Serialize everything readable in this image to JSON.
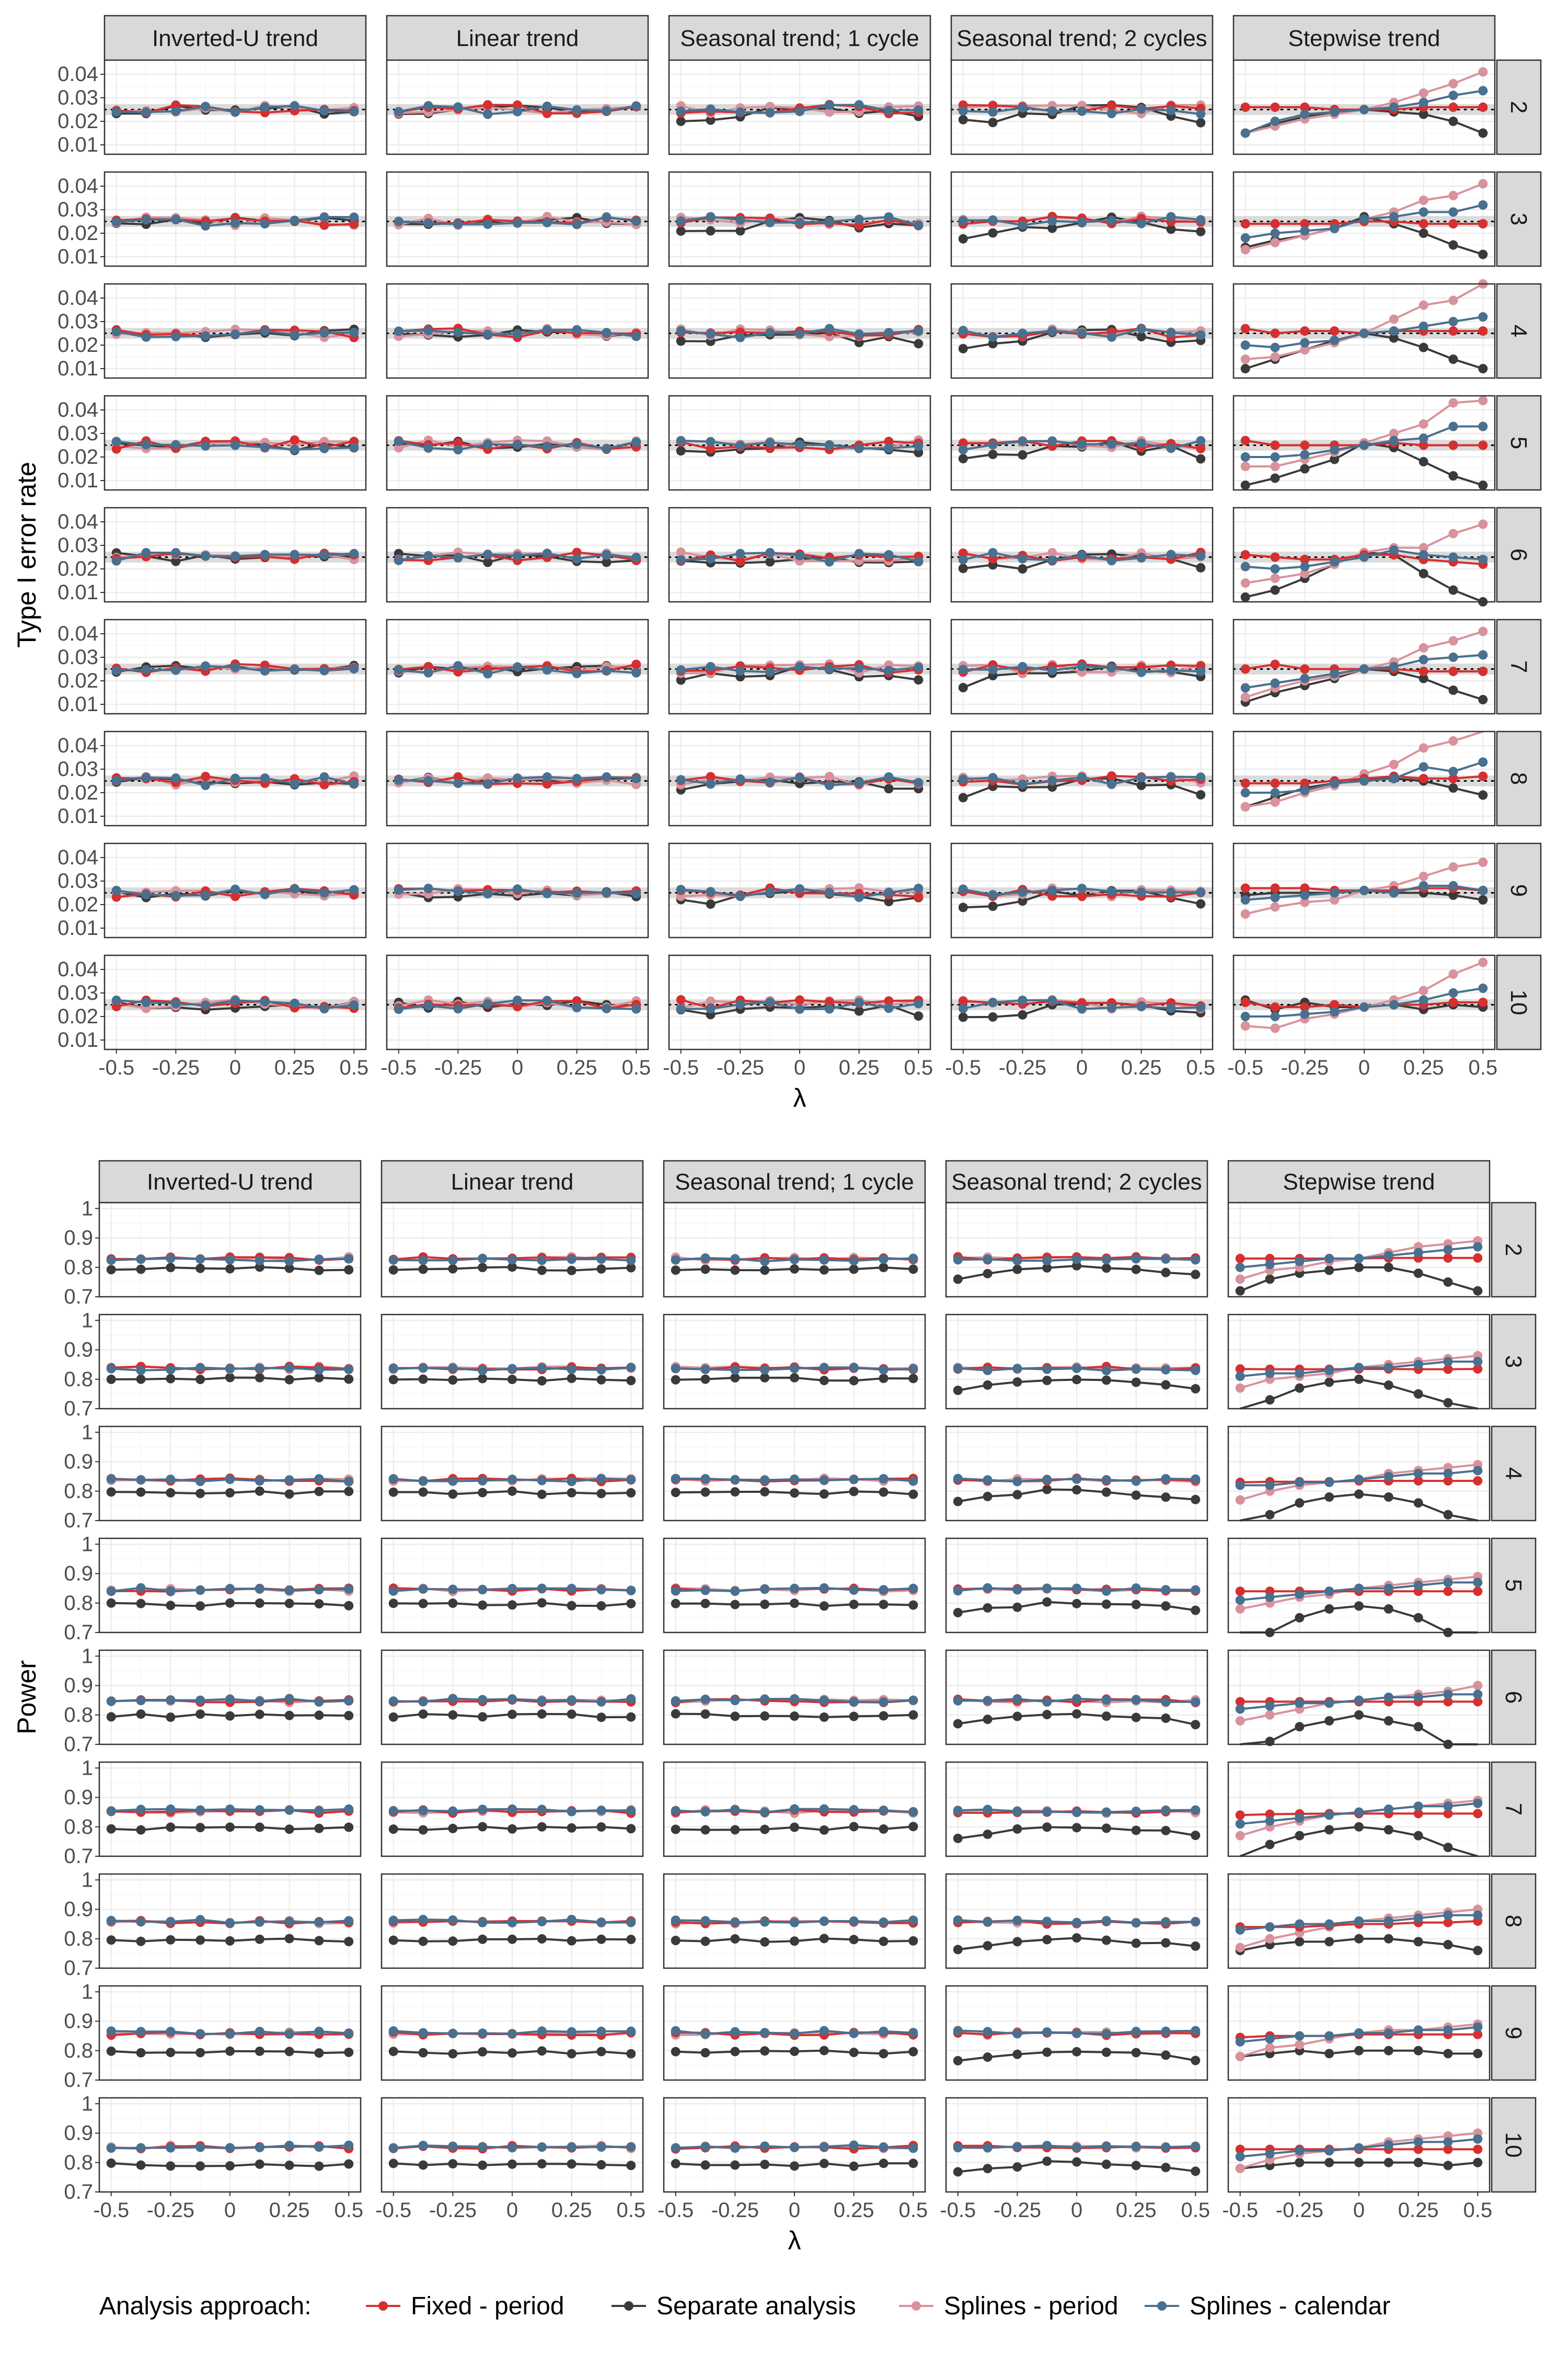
{
  "legend": {
    "title": "Analysis approach:",
    "items": [
      {
        "key": "fixed",
        "label": "Fixed - period",
        "color": "#d62f30"
      },
      {
        "key": "sep",
        "label": "Separate analysis",
        "color": "#3a3a3a"
      },
      {
        "key": "splp",
        "label": "Splines - period",
        "color": "#d8929c"
      },
      {
        "key": "splc",
        "label": "Splines - calendar",
        "color": "#49708f"
      }
    ]
  },
  "chart_data": [
    {
      "type": "line",
      "ylabel": "Type I error rate",
      "xlabel": "λ",
      "x": [
        -0.5,
        -0.375,
        -0.25,
        -0.125,
        0,
        0.125,
        0.25,
        0.375,
        0.5
      ],
      "x_ticks": [
        "-0.5",
        "-0.25",
        "0",
        "0.25",
        "0.5"
      ],
      "y_ticks": [
        "0.01",
        "0.02",
        "0.03",
        "0.04"
      ],
      "ylim": [
        0.006,
        0.046
      ],
      "reference_line": 0.025,
      "reference_band": [
        0.0227,
        0.0273
      ],
      "facet_columns": [
        "Inverted-U trend",
        "Linear trend",
        "Seasonal trend; 1 cycle",
        "Seasonal trend; 2 cycles",
        "Stepwise trend"
      ],
      "facet_rows": [
        "2",
        "3",
        "4",
        "5",
        "6",
        "7",
        "8",
        "9",
        "10"
      ],
      "generic_series": {
        "fixed": 0.0252,
        "sep": 0.0248,
        "splp": 0.0252,
        "splc": 0.025,
        "sep_seasonal2": [
          0.019,
          0.021,
          0.022,
          0.024,
          0.025,
          0.025,
          0.024,
          0.023,
          0.021
        ],
        "sep_seasonal1": [
          0.022,
          0.022,
          0.023,
          0.024,
          0.025,
          0.024,
          0.023,
          0.023,
          0.022
        ]
      },
      "stepwise_series": [
        {
          "row": "2",
          "fixed": [
            0.026,
            0.026,
            0.026,
            0.025,
            0.025,
            0.025,
            0.026,
            0.026,
            0.026
          ],
          "sep": [
            0.015,
            0.019,
            0.022,
            0.024,
            0.025,
            0.024,
            0.023,
            0.02,
            0.015
          ],
          "splp": [
            0.015,
            0.018,
            0.021,
            0.023,
            0.025,
            0.028,
            0.032,
            0.036,
            0.041
          ],
          "splc": [
            0.015,
            0.02,
            0.023,
            0.024,
            0.025,
            0.026,
            0.028,
            0.031,
            0.033
          ]
        },
        {
          "row": "3",
          "fixed": [
            0.024,
            0.024,
            0.024,
            0.024,
            0.025,
            0.025,
            0.024,
            0.024,
            0.024
          ],
          "sep": [
            0.014,
            0.017,
            0.019,
            0.022,
            0.027,
            0.024,
            0.02,
            0.015,
            0.011
          ],
          "splp": [
            0.013,
            0.016,
            0.019,
            0.022,
            0.026,
            0.029,
            0.034,
            0.036,
            0.041
          ],
          "splc": [
            0.018,
            0.02,
            0.021,
            0.022,
            0.026,
            0.027,
            0.029,
            0.029,
            0.032
          ]
        },
        {
          "row": "4",
          "fixed": [
            0.027,
            0.025,
            0.026,
            0.026,
            0.025,
            0.026,
            0.026,
            0.026,
            0.026
          ],
          "sep": [
            0.01,
            0.014,
            0.018,
            0.022,
            0.025,
            0.023,
            0.019,
            0.014,
            0.01
          ],
          "splp": [
            0.014,
            0.015,
            0.018,
            0.021,
            0.025,
            0.031,
            0.037,
            0.039,
            0.046
          ],
          "splc": [
            0.02,
            0.019,
            0.021,
            0.022,
            0.025,
            0.026,
            0.028,
            0.03,
            0.032
          ]
        },
        {
          "row": "5",
          "fixed": [
            0.027,
            0.025,
            0.025,
            0.025,
            0.025,
            0.026,
            0.025,
            0.025,
            0.025
          ],
          "sep": [
            0.008,
            0.011,
            0.015,
            0.019,
            0.026,
            0.024,
            0.018,
            0.012,
            0.008
          ],
          "splp": [
            0.016,
            0.016,
            0.019,
            0.022,
            0.026,
            0.03,
            0.034,
            0.043,
            0.044
          ],
          "splc": [
            0.02,
            0.02,
            0.021,
            0.023,
            0.025,
            0.027,
            0.028,
            0.033,
            0.033
          ]
        },
        {
          "row": "6",
          "fixed": [
            0.026,
            0.025,
            0.024,
            0.024,
            0.026,
            0.026,
            0.024,
            0.023,
            0.022
          ],
          "sep": [
            0.008,
            0.011,
            0.016,
            0.022,
            0.027,
            0.026,
            0.018,
            0.011,
            0.006
          ],
          "splp": [
            0.014,
            0.016,
            0.018,
            0.022,
            0.027,
            0.029,
            0.029,
            0.035,
            0.039
          ],
          "splc": [
            0.021,
            0.02,
            0.021,
            0.023,
            0.025,
            0.028,
            0.026,
            0.025,
            0.024
          ]
        },
        {
          "row": "7",
          "fixed": [
            0.025,
            0.027,
            0.025,
            0.025,
            0.025,
            0.025,
            0.024,
            0.024,
            0.024
          ],
          "sep": [
            0.011,
            0.015,
            0.018,
            0.021,
            0.025,
            0.024,
            0.021,
            0.016,
            0.012
          ],
          "splp": [
            0.013,
            0.017,
            0.02,
            0.022,
            0.025,
            0.028,
            0.034,
            0.037,
            0.041
          ],
          "splc": [
            0.017,
            0.019,
            0.021,
            0.023,
            0.025,
            0.026,
            0.029,
            0.03,
            0.031
          ]
        },
        {
          "row": "8",
          "fixed": [
            0.024,
            0.024,
            0.024,
            0.025,
            0.026,
            0.027,
            0.026,
            0.026,
            0.027
          ],
          "sep": [
            0.014,
            0.018,
            0.022,
            0.024,
            0.026,
            0.026,
            0.025,
            0.022,
            0.019
          ],
          "splp": [
            0.014,
            0.016,
            0.02,
            0.023,
            0.028,
            0.032,
            0.039,
            0.042,
            0.049
          ],
          "splc": [
            0.02,
            0.02,
            0.021,
            0.024,
            0.025,
            0.026,
            0.031,
            0.029,
            0.033
          ]
        },
        {
          "row": "9",
          "fixed": [
            0.027,
            0.027,
            0.027,
            0.026,
            0.026,
            0.026,
            0.027,
            0.027,
            0.026
          ],
          "sep": [
            0.024,
            0.025,
            0.025,
            0.025,
            0.026,
            0.025,
            0.025,
            0.024,
            0.022
          ],
          "splp": [
            0.016,
            0.019,
            0.021,
            0.022,
            0.026,
            0.028,
            0.032,
            0.036,
            0.038
          ],
          "splc": [
            0.022,
            0.023,
            0.024,
            0.025,
            0.026,
            0.025,
            0.028,
            0.028,
            0.026
          ]
        },
        {
          "row": "10",
          "fixed": [
            0.026,
            0.024,
            0.024,
            0.025,
            0.024,
            0.025,
            0.025,
            0.026,
            0.026
          ],
          "sep": [
            0.027,
            0.023,
            0.026,
            0.024,
            0.024,
            0.025,
            0.023,
            0.025,
            0.024
          ],
          "splp": [
            0.016,
            0.015,
            0.019,
            0.021,
            0.024,
            0.027,
            0.031,
            0.038,
            0.043
          ],
          "splc": [
            0.02,
            0.02,
            0.021,
            0.022,
            0.024,
            0.025,
            0.027,
            0.03,
            0.032
          ]
        }
      ]
    },
    {
      "type": "line",
      "ylabel": "Power",
      "xlabel": "λ",
      "x": [
        -0.5,
        -0.375,
        -0.25,
        -0.125,
        0,
        0.125,
        0.25,
        0.375,
        0.5
      ],
      "x_ticks": [
        "-0.5",
        "-0.25",
        "0",
        "0.25",
        "0.5"
      ],
      "y_ticks": [
        "0.7",
        "0.8",
        "0.9",
        "1"
      ],
      "ylim": [
        0.7,
        1.02
      ],
      "facet_columns": [
        "Inverted-U trend",
        "Linear trend",
        "Seasonal trend; 1 cycle",
        "Seasonal trend; 2 cycles",
        "Stepwise trend"
      ],
      "facet_rows": [
        "2",
        "3",
        "4",
        "5",
        "6",
        "7",
        "8",
        "9",
        "10"
      ],
      "generic_series": {
        "fixed_by_row": [
          0.83,
          0.838,
          0.838,
          0.845,
          0.848,
          0.852,
          0.856,
          0.858,
          0.852
        ],
        "splc_by_row": [
          0.826,
          0.835,
          0.838,
          0.846,
          0.85,
          0.855,
          0.86,
          0.862,
          0.854
        ],
        "sep_by_row": [
          0.795,
          0.8,
          0.795,
          0.795,
          0.798,
          0.795,
          0.795,
          0.795,
          0.792
        ],
        "sep_seasonal2": [
          0.765,
          0.78,
          0.79,
          0.8,
          0.8,
          0.8,
          0.79,
          0.785,
          0.77
        ]
      },
      "stepwise_series": [
        {
          "row": "2",
          "fixed": [
            0.83,
            0.83,
            0.83,
            0.83,
            0.83,
            0.832,
            0.832,
            0.832,
            0.832
          ],
          "sep": [
            0.72,
            0.76,
            0.78,
            0.79,
            0.8,
            0.8,
            0.78,
            0.75,
            0.72
          ],
          "splp": [
            0.76,
            0.79,
            0.8,
            0.82,
            0.83,
            0.85,
            0.87,
            0.88,
            0.89
          ],
          "splc": [
            0.8,
            0.81,
            0.82,
            0.83,
            0.83,
            0.84,
            0.85,
            0.86,
            0.87
          ]
        },
        {
          "row": "3",
          "fixed": [
            0.835,
            0.834,
            0.834,
            0.834,
            0.835,
            0.835,
            0.834,
            0.834,
            0.835
          ],
          "sep": [
            0.69,
            0.73,
            0.77,
            0.79,
            0.8,
            0.78,
            0.75,
            0.72,
            0.69
          ],
          "splp": [
            0.77,
            0.8,
            0.81,
            0.82,
            0.84,
            0.85,
            0.86,
            0.87,
            0.88
          ],
          "splc": [
            0.81,
            0.82,
            0.82,
            0.83,
            0.84,
            0.84,
            0.85,
            0.86,
            0.86
          ]
        },
        {
          "row": "4",
          "fixed": [
            0.83,
            0.832,
            0.832,
            0.832,
            0.835,
            0.835,
            0.835,
            0.835,
            0.835
          ],
          "sep": [
            0.64,
            0.72,
            0.76,
            0.78,
            0.79,
            0.78,
            0.76,
            0.72,
            0.66
          ],
          "splp": [
            0.77,
            0.8,
            0.82,
            0.83,
            0.84,
            0.86,
            0.87,
            0.88,
            0.89
          ],
          "splc": [
            0.82,
            0.82,
            0.83,
            0.83,
            0.84,
            0.85,
            0.86,
            0.86,
            0.87
          ]
        },
        {
          "row": "5",
          "fixed": [
            0.84,
            0.84,
            0.84,
            0.84,
            0.84,
            0.84,
            0.84,
            0.84,
            0.84
          ],
          "sep": [
            0.64,
            0.7,
            0.75,
            0.78,
            0.79,
            0.78,
            0.75,
            0.7,
            0.64
          ],
          "splp": [
            0.78,
            0.8,
            0.82,
            0.83,
            0.85,
            0.86,
            0.87,
            0.88,
            0.89
          ],
          "splc": [
            0.81,
            0.82,
            0.83,
            0.84,
            0.85,
            0.85,
            0.86,
            0.87,
            0.87
          ]
        },
        {
          "row": "6",
          "fixed": [
            0.845,
            0.845,
            0.845,
            0.845,
            0.845,
            0.845,
            0.845,
            0.845,
            0.845
          ],
          "sep": [
            0.64,
            0.71,
            0.76,
            0.78,
            0.8,
            0.78,
            0.76,
            0.7,
            0.64
          ],
          "splp": [
            0.78,
            0.8,
            0.82,
            0.84,
            0.85,
            0.86,
            0.87,
            0.88,
            0.9
          ],
          "splc": [
            0.82,
            0.83,
            0.84,
            0.84,
            0.85,
            0.86,
            0.86,
            0.87,
            0.87
          ]
        },
        {
          "row": "7",
          "fixed": [
            0.84,
            0.843,
            0.844,
            0.845,
            0.845,
            0.845,
            0.845,
            0.845,
            0.845
          ],
          "sep": [
            0.69,
            0.74,
            0.77,
            0.79,
            0.8,
            0.79,
            0.77,
            0.73,
            0.69
          ],
          "splp": [
            0.77,
            0.8,
            0.82,
            0.84,
            0.85,
            0.86,
            0.87,
            0.88,
            0.89
          ],
          "splc": [
            0.81,
            0.82,
            0.83,
            0.84,
            0.85,
            0.86,
            0.87,
            0.87,
            0.88
          ]
        },
        {
          "row": "8",
          "fixed": [
            0.84,
            0.84,
            0.84,
            0.845,
            0.85,
            0.85,
            0.855,
            0.855,
            0.86
          ],
          "sep": [
            0.76,
            0.78,
            0.79,
            0.79,
            0.8,
            0.8,
            0.79,
            0.78,
            0.76
          ],
          "splp": [
            0.77,
            0.8,
            0.82,
            0.84,
            0.86,
            0.87,
            0.88,
            0.89,
            0.9
          ],
          "splc": [
            0.83,
            0.84,
            0.85,
            0.85,
            0.86,
            0.86,
            0.87,
            0.88,
            0.88
          ]
        },
        {
          "row": "9",
          "fixed": [
            0.845,
            0.85,
            0.85,
            0.85,
            0.855,
            0.855,
            0.855,
            0.855,
            0.855
          ],
          "sep": [
            0.78,
            0.79,
            0.8,
            0.79,
            0.8,
            0.8,
            0.8,
            0.79,
            0.79
          ],
          "splp": [
            0.78,
            0.81,
            0.82,
            0.84,
            0.86,
            0.87,
            0.87,
            0.88,
            0.89
          ],
          "splc": [
            0.83,
            0.84,
            0.85,
            0.85,
            0.86,
            0.86,
            0.87,
            0.87,
            0.88
          ]
        },
        {
          "row": "10",
          "fixed": [
            0.845,
            0.845,
            0.845,
            0.845,
            0.845,
            0.845,
            0.845,
            0.845,
            0.845
          ],
          "sep": [
            0.78,
            0.79,
            0.8,
            0.8,
            0.8,
            0.8,
            0.8,
            0.79,
            0.8
          ],
          "splp": [
            0.78,
            0.81,
            0.83,
            0.84,
            0.85,
            0.87,
            0.88,
            0.89,
            0.9
          ],
          "splc": [
            0.82,
            0.83,
            0.84,
            0.84,
            0.85,
            0.86,
            0.87,
            0.87,
            0.88
          ]
        }
      ]
    }
  ]
}
